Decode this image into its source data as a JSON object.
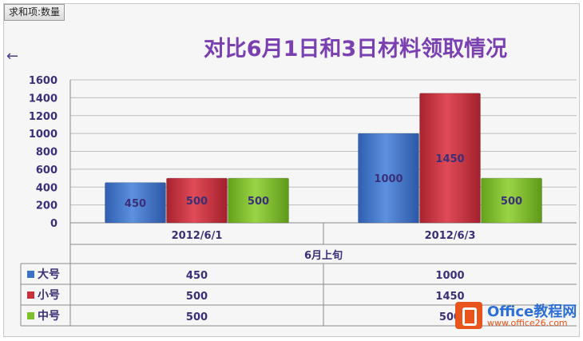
{
  "pivot": {
    "field_button": "求和项:数量"
  },
  "nav": {
    "arrow_glyph": "←"
  },
  "chart_data": {
    "type": "bar",
    "title": "对比6月1日和3日材料领取情况",
    "categories": [
      "2012/6/1",
      "2012/6/3"
    ],
    "group_label": "6月上旬",
    "series": [
      {
        "name": "大号",
        "values": [
          450,
          1000
        ],
        "color": "#3d72c9"
      },
      {
        "name": "小号",
        "values": [
          500,
          1450
        ],
        "color": "#c8303d"
      },
      {
        "name": "中号",
        "values": [
          500,
          500
        ],
        "color": "#7fbf2a"
      }
    ],
    "ylim": [
      0,
      1600
    ],
    "yticks": [
      0,
      200,
      400,
      600,
      800,
      1000,
      1200,
      1400,
      1600
    ],
    "grid": true,
    "data_table": true
  },
  "watermark": {
    "name": "Office教程网",
    "url": "www.office26.com"
  }
}
